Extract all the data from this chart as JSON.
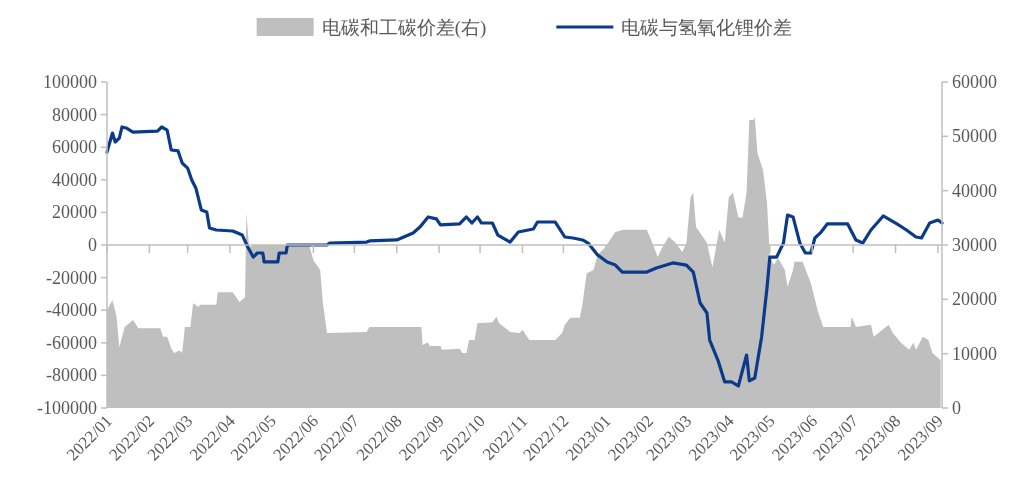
{
  "chart_data": {
    "type": "line",
    "legend": "top",
    "ylim": [
      -100000,
      100000
    ],
    "yticks": [
      -100000,
      -80000,
      -60000,
      -40000,
      -20000,
      0,
      20000,
      40000,
      60000,
      80000,
      100000
    ],
    "y2lim": [
      0,
      60000
    ],
    "y2ticks": [
      0,
      10000,
      20000,
      30000,
      40000,
      50000,
      60000
    ],
    "xlim": [
      "2022-01-01",
      "2023-09-04"
    ],
    "xticks": [
      {
        "value": "2022-01-01",
        "label": "2022/01"
      },
      {
        "value": "2022-02-01",
        "label": "2022/02"
      },
      {
        "value": "2022-03-01",
        "label": "2022/03"
      },
      {
        "value": "2022-04-01",
        "label": "2022/04"
      },
      {
        "value": "2022-05-01",
        "label": "2022/05"
      },
      {
        "value": "2022-06-01",
        "label": "2022/06"
      },
      {
        "value": "2022-07-01",
        "label": "2022/07"
      },
      {
        "value": "2022-08-01",
        "label": "2022/08"
      },
      {
        "value": "2022-09-01",
        "label": "2022/09"
      },
      {
        "value": "2022-10-01",
        "label": "2022/10"
      },
      {
        "value": "2022-11-01",
        "label": "2022/11"
      },
      {
        "value": "2022-12-01",
        "label": "2022/12"
      },
      {
        "value": "2023-01-01",
        "label": "2023/01"
      },
      {
        "value": "2023-02-01",
        "label": "2023/02"
      },
      {
        "value": "2023-03-01",
        "label": "2023/03"
      },
      {
        "value": "2023-04-01",
        "label": "2023/04"
      },
      {
        "value": "2023-05-01",
        "label": "2023/05"
      },
      {
        "value": "2023-06-01",
        "label": "2023/06"
      },
      {
        "value": "2023-07-01",
        "label": "2023/07"
      },
      {
        "value": "2023-08-01",
        "label": "2023/08"
      },
      {
        "value": "2023-09-01",
        "label": "2023/09"
      }
    ],
    "series": [
      {
        "name": "电碳和工碳价差(右)",
        "type": "area",
        "axis": "y2",
        "color": "#bfbfbf",
        "x": [
          "2022-01-01",
          "2022-01-05",
          "2022-01-08",
          "2022-01-10",
          "2022-01-14",
          "2022-01-20",
          "2022-01-24",
          "2022-02-09",
          "2022-02-11",
          "2022-02-14",
          "2022-02-17",
          "2022-02-19",
          "2022-02-23",
          "2022-02-25",
          "2022-02-27",
          "2022-03-03",
          "2022-03-05",
          "2022-03-09",
          "2022-03-10",
          "2022-03-22",
          "2022-03-23",
          "2022-04-03",
          "2022-04-08",
          "2022-04-12",
          "2022-04-13",
          "2022-04-15",
          "2022-04-18",
          "2022-05-29",
          "2022-06-01",
          "2022-06-06",
          "2022-06-08",
          "2022-06-11",
          "2022-07-10",
          "2022-07-12",
          "2022-08-19",
          "2022-08-20",
          "2022-08-24",
          "2022-08-25",
          "2022-09-02",
          "2022-09-03",
          "2022-09-16",
          "2022-09-18",
          "2022-09-21",
          "2022-09-23",
          "2022-09-27",
          "2022-09-29",
          "2022-10-10",
          "2022-10-13",
          "2022-10-15",
          "2022-10-23",
          "2022-10-30",
          "2022-11-01",
          "2022-11-06",
          "2022-11-25",
          "2022-11-30",
          "2022-12-02",
          "2022-12-06",
          "2022-12-13",
          "2022-12-15",
          "2022-12-18",
          "2022-12-23",
          "2022-12-26",
          "2022-12-31",
          "2023-01-08",
          "2023-01-14",
          "2023-01-31",
          "2023-02-04",
          "2023-02-08",
          "2023-02-11",
          "2023-02-16",
          "2023-02-21",
          "2023-02-26",
          "2023-03-01",
          "2023-03-04",
          "2023-03-06",
          "2023-03-08",
          "2023-03-16",
          "2023-03-20",
          "2023-03-25",
          "2023-03-29",
          "2023-04-01",
          "2023-04-04",
          "2023-04-08",
          "2023-04-11",
          "2023-04-14",
          "2023-04-16",
          "2023-04-19",
          "2023-04-20",
          "2023-04-22",
          "2023-04-26",
          "2023-04-29",
          "2023-05-01",
          "2023-05-04",
          "2023-05-07",
          "2023-05-12",
          "2023-05-14",
          "2023-05-18",
          "2023-05-19",
          "2023-05-25",
          "2023-05-31",
          "2023-06-05",
          "2023-06-09",
          "2023-06-29",
          "2023-06-30",
          "2023-07-03",
          "2023-07-14",
          "2023-07-16",
          "2023-07-27",
          "2023-07-30",
          "2023-08-05",
          "2023-08-11",
          "2023-08-14",
          "2023-08-16",
          "2023-08-21",
          "2023-08-25",
          "2023-08-28",
          "2023-09-03"
        ],
        "values": [
          18000,
          19900,
          16800,
          11200,
          14900,
          16200,
          14700,
          14700,
          13100,
          13100,
          11000,
          10100,
          10600,
          10100,
          14900,
          14900,
          19300,
          18600,
          19000,
          19000,
          21300,
          21300,
          19500,
          20400,
          35900,
          29600,
          30000,
          30000,
          27200,
          25400,
          19300,
          13800,
          14000,
          14900,
          14900,
          11600,
          12100,
          11400,
          11400,
          10700,
          10900,
          10100,
          10100,
          12500,
          12500,
          15600,
          15800,
          16800,
          15600,
          14000,
          13800,
          14400,
          12500,
          12500,
          13800,
          15300,
          16600,
          16600,
          19300,
          24800,
          25400,
          28200,
          29400,
          32400,
          32800,
          32800,
          30400,
          27800,
          29400,
          31500,
          30400,
          28700,
          30400,
          38800,
          39600,
          33300,
          30400,
          25900,
          32800,
          30400,
          38800,
          39600,
          35100,
          35000,
          39600,
          53000,
          53000,
          53500,
          46900,
          43800,
          37700,
          27800,
          26300,
          27600,
          25400,
          22300,
          25400,
          26900,
          26900,
          23000,
          18000,
          14900,
          14900,
          16800,
          14900,
          15300,
          13100,
          15300,
          13800,
          12000,
          10700,
          12000,
          10700,
          13100,
          12500,
          10100,
          8800
        ]
      },
      {
        "name": "电碳与氢氧化锂价差",
        "type": "line",
        "color": "#0b3a8a",
        "x": [
          "2022-01-01",
          "2022-01-05",
          "2022-01-07",
          "2022-01-10",
          "2022-01-12",
          "2022-01-15",
          "2022-01-20",
          "2022-02-07",
          "2022-02-10",
          "2022-02-14",
          "2022-02-17",
          "2022-02-22",
          "2022-02-25",
          "2022-03-01",
          "2022-03-04",
          "2022-03-07",
          "2022-03-11",
          "2022-03-15",
          "2022-03-17",
          "2022-03-22",
          "2022-04-03",
          "2022-04-10",
          "2022-04-14",
          "2022-04-18",
          "2022-04-21",
          "2022-04-25",
          "2022-04-26",
          "2022-05-06",
          "2022-05-07",
          "2022-05-12",
          "2022-05-13",
          "2022-06-11",
          "2022-06-13",
          "2022-07-10",
          "2022-07-12",
          "2022-08-01",
          "2022-08-13",
          "2022-08-18",
          "2022-08-24",
          "2022-08-30",
          "2022-09-02",
          "2022-09-16",
          "2022-09-21",
          "2022-09-25",
          "2022-09-29",
          "2022-10-02",
          "2022-10-10",
          "2022-10-14",
          "2022-10-23",
          "2022-10-29",
          "2022-11-09",
          "2022-11-12",
          "2022-11-25",
          "2022-12-02",
          "2022-12-08",
          "2022-12-15",
          "2022-12-19",
          "2022-12-26",
          "2023-01-02",
          "2023-01-08",
          "2023-01-13",
          "2023-01-31",
          "2023-02-07",
          "2023-02-19",
          "2023-03-01",
          "2023-03-06",
          "2023-03-11",
          "2023-03-16",
          "2023-03-18",
          "2023-03-24",
          "2023-03-29",
          "2023-04-03",
          "2023-04-08",
          "2023-04-14",
          "2023-04-16",
          "2023-04-20",
          "2023-04-25",
          "2023-04-29",
          "2023-05-01",
          "2023-05-06",
          "2023-05-11",
          "2023-05-14",
          "2023-05-18",
          "2023-05-23",
          "2023-05-27",
          "2023-05-31",
          "2023-06-03",
          "2023-06-07",
          "2023-06-12",
          "2023-06-27",
          "2023-07-03",
          "2023-07-08",
          "2023-07-14",
          "2023-07-23",
          "2023-08-02",
          "2023-08-09",
          "2023-08-16",
          "2023-08-20",
          "2023-08-26",
          "2023-09-01",
          "2023-09-04"
        ],
        "values": [
          57000,
          68700,
          63200,
          65600,
          72400,
          71800,
          69300,
          69900,
          72400,
          70500,
          58300,
          57700,
          50300,
          47200,
          39900,
          35000,
          21500,
          20200,
          10400,
          9200,
          8600,
          6100,
          -1200,
          -7400,
          -4900,
          -4900,
          -10400,
          -10400,
          -4900,
          -4900,
          0,
          0,
          1200,
          1800,
          2500,
          3100,
          7400,
          11000,
          17200,
          16000,
          12300,
          12900,
          17200,
          13500,
          17200,
          13500,
          13500,
          6100,
          1800,
          8000,
          9800,
          14100,
          14100,
          4900,
          4300,
          3100,
          1200,
          -6100,
          -10400,
          -12300,
          -16600,
          -16600,
          -14100,
          -11000,
          -12300,
          -16600,
          -35600,
          -41700,
          -58300,
          -70600,
          -84000,
          -84000,
          -86500,
          -67500,
          -83400,
          -81600,
          -56400,
          -25800,
          -7400,
          -7400,
          1200,
          18400,
          17200,
          1200,
          -4900,
          -4900,
          4300,
          7400,
          12900,
          12900,
          3100,
          1200,
          9200,
          17800,
          12900,
          9200,
          4900,
          4300,
          13500,
          15300,
          13500
        ]
      }
    ]
  }
}
